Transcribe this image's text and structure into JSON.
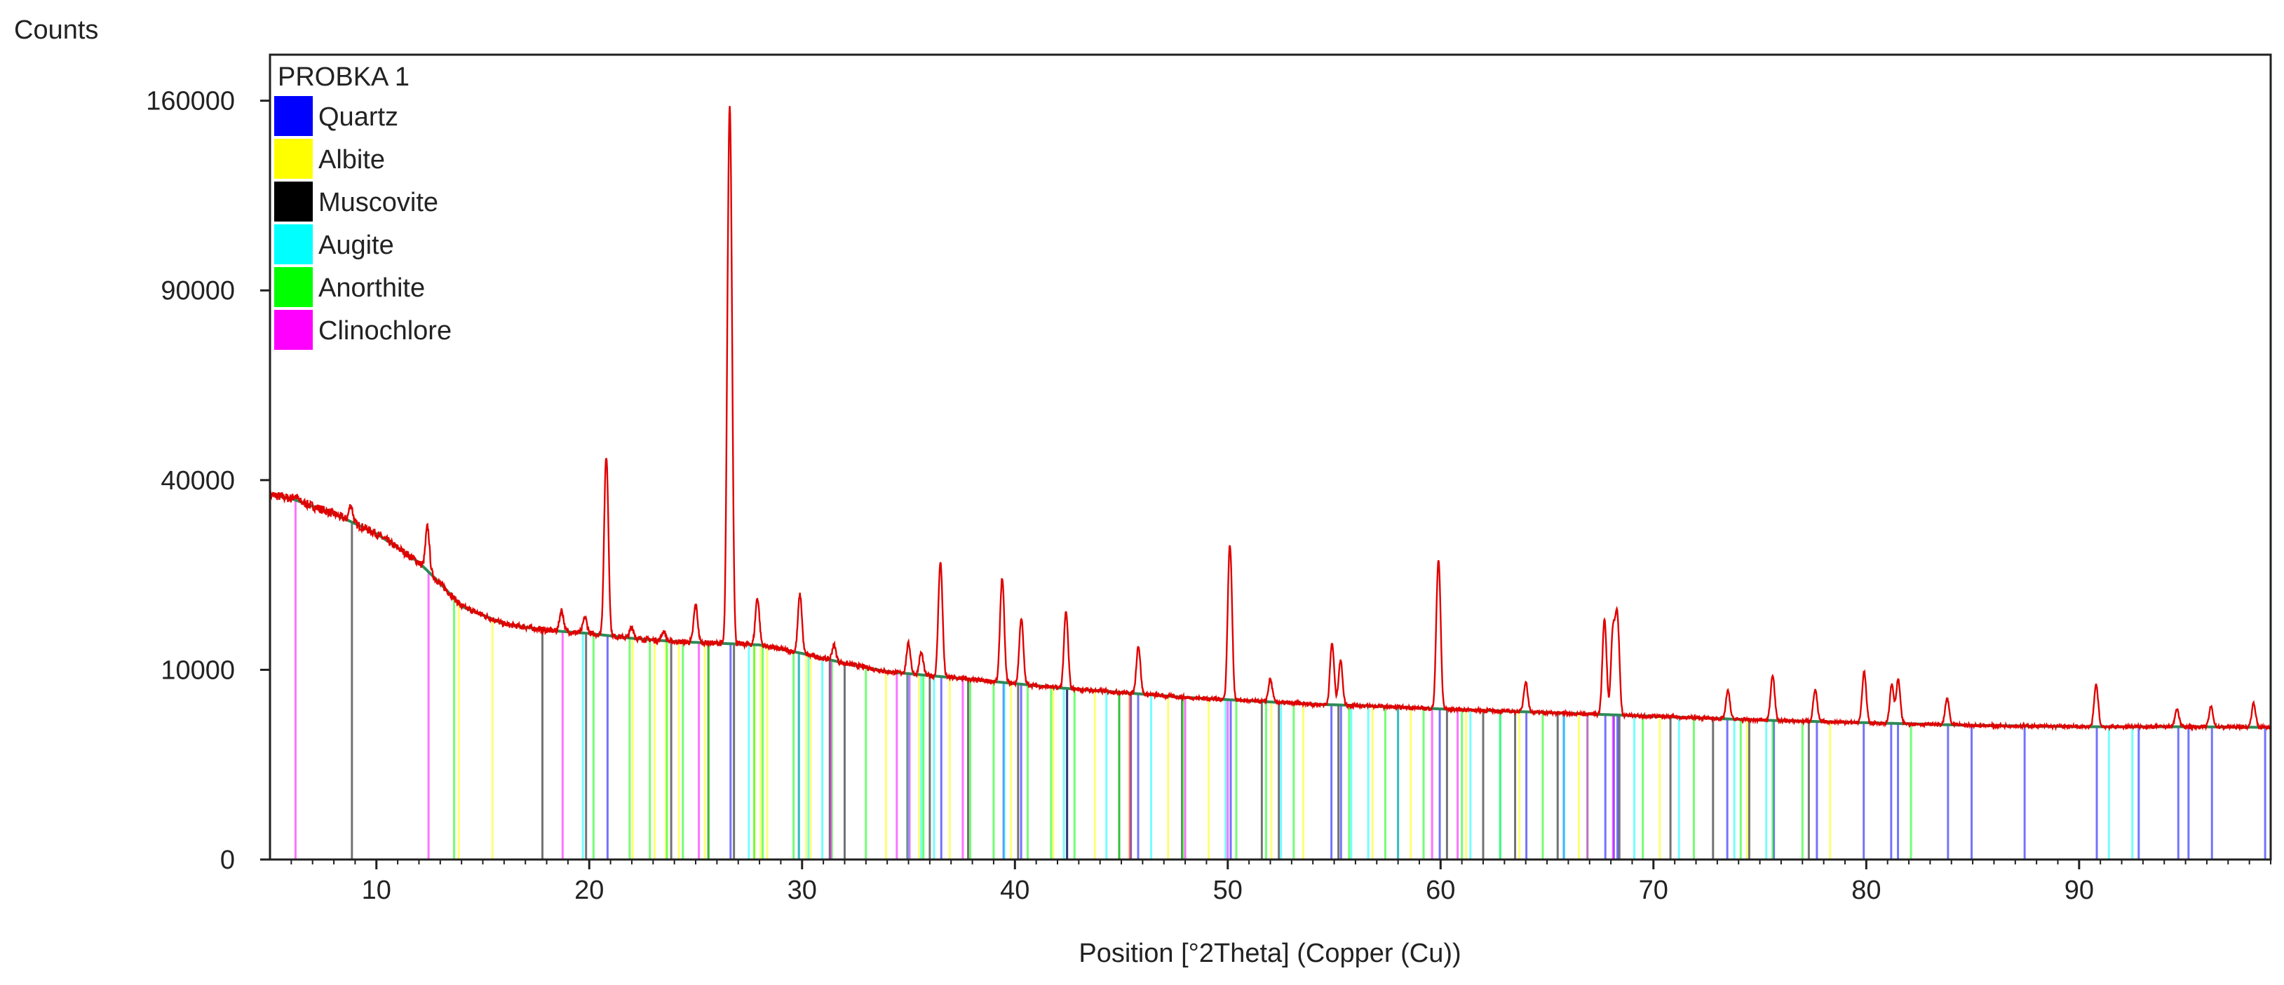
{
  "chart_data": {
    "type": "line",
    "title": "",
    "ylabel": "Counts",
    "xlabel": "Position [°2Theta] (Copper (Cu))",
    "xlim": [
      5,
      99
    ],
    "ylim": [
      0,
      180000
    ],
    "y_scale": "sqrt",
    "grid": false,
    "legend_placement": "top-left",
    "x_ticks": [
      10,
      20,
      30,
      40,
      50,
      60,
      70,
      80,
      90
    ],
    "y_ticks": [
      0,
      10000,
      40000,
      90000,
      160000
    ],
    "x_tick_labels": [
      "10",
      "20",
      "30",
      "40",
      "50",
      "60",
      "70",
      "80",
      "90"
    ],
    "y_tick_labels": [
      "0",
      "10000",
      "40000",
      "90000",
      "160000"
    ],
    "legend": {
      "title": "PROBKA 1",
      "entries": [
        {
          "name": "Quartz",
          "color": "#0000ff"
        },
        {
          "name": "Albite",
          "color": "#ffff00"
        },
        {
          "name": "Muscovite",
          "color": "#000000"
        },
        {
          "name": "Augite",
          "color": "#00ffff"
        },
        {
          "name": "Anorthite",
          "color": "#00ff00"
        },
        {
          "name": "Clinochlore",
          "color": "#ff00ff"
        }
      ]
    },
    "pattern": {
      "name": "PROBKA 1",
      "color": "#e00000",
      "background_color": "#2e8b57",
      "background": [
        [
          5,
          37000
        ],
        [
          6,
          36200
        ],
        [
          8,
          33200
        ],
        [
          10,
          29500
        ],
        [
          12,
          24500
        ],
        [
          14,
          17800
        ],
        [
          16,
          15400
        ],
        [
          18,
          14600
        ],
        [
          20,
          14200
        ],
        [
          22,
          13600
        ],
        [
          24,
          13200
        ],
        [
          26,
          13000
        ],
        [
          28,
          12800
        ],
        [
          30,
          11800
        ],
        [
          32,
          10700
        ],
        [
          34,
          9800
        ],
        [
          36,
          9400
        ],
        [
          38,
          9000
        ],
        [
          40,
          8600
        ],
        [
          42,
          8200
        ],
        [
          44,
          7900
        ],
        [
          46,
          7600
        ],
        [
          48,
          7300
        ],
        [
          50,
          7100
        ],
        [
          52,
          6900
        ],
        [
          54,
          6700
        ],
        [
          56,
          6600
        ],
        [
          58,
          6450
        ],
        [
          60,
          6300
        ],
        [
          65,
          6000
        ],
        [
          70,
          5700
        ],
        [
          75,
          5400
        ],
        [
          80,
          5200
        ],
        [
          85,
          5000
        ],
        [
          90,
          4900
        ],
        [
          95,
          4900
        ],
        [
          99,
          4850
        ]
      ],
      "peaks": [
        {
          "x": 6.2,
          "y": 36800
        },
        {
          "x": 8.8,
          "y": 34900
        },
        {
          "x": 12.4,
          "y": 30800
        },
        {
          "x": 18.7,
          "y": 17300
        },
        {
          "x": 19.8,
          "y": 16300
        },
        {
          "x": 20.8,
          "y": 45000
        },
        {
          "x": 22.0,
          "y": 15000
        },
        {
          "x": 23.5,
          "y": 14500
        },
        {
          "x": 25.0,
          "y": 18000
        },
        {
          "x": 26.6,
          "y": 158000
        },
        {
          "x": 27.9,
          "y": 19000
        },
        {
          "x": 29.9,
          "y": 19500
        },
        {
          "x": 31.5,
          "y": 12800
        },
        {
          "x": 35.0,
          "y": 13000
        },
        {
          "x": 35.6,
          "y": 11900
        },
        {
          "x": 36.5,
          "y": 24500
        },
        {
          "x": 39.4,
          "y": 22000
        },
        {
          "x": 40.3,
          "y": 16200
        },
        {
          "x": 42.4,
          "y": 17000
        },
        {
          "x": 45.8,
          "y": 12700
        },
        {
          "x": 50.1,
          "y": 27500
        },
        {
          "x": 52.0,
          "y": 9000
        },
        {
          "x": 54.9,
          "y": 13000
        },
        {
          "x": 55.3,
          "y": 11000
        },
        {
          "x": 59.9,
          "y": 25000
        },
        {
          "x": 64.0,
          "y": 8800
        },
        {
          "x": 67.7,
          "y": 16000
        },
        {
          "x": 68.1,
          "y": 14500
        },
        {
          "x": 68.3,
          "y": 16500
        },
        {
          "x": 73.5,
          "y": 7900
        },
        {
          "x": 75.6,
          "y": 9500
        },
        {
          "x": 77.6,
          "y": 8000
        },
        {
          "x": 79.9,
          "y": 9800
        },
        {
          "x": 81.2,
          "y": 8500
        },
        {
          "x": 81.5,
          "y": 9000
        },
        {
          "x": 83.8,
          "y": 7200
        },
        {
          "x": 90.8,
          "y": 8500
        },
        {
          "x": 94.6,
          "y": 6300
        },
        {
          "x": 96.2,
          "y": 6500
        },
        {
          "x": 98.2,
          "y": 6800
        }
      ]
    },
    "reference_lines": {
      "Quartz": [
        20.86,
        26.64,
        36.54,
        39.47,
        40.29,
        42.45,
        45.79,
        50.14,
        54.87,
        55.32,
        59.96,
        64.03,
        65.79,
        67.74,
        68.14,
        68.31,
        73.47,
        75.66,
        77.68,
        79.88,
        81.17,
        81.49,
        83.84,
        84.95,
        87.44,
        90.83,
        92.8,
        94.66,
        95.14,
        96.24,
        98.74
      ],
      "Albite": [
        13.87,
        15.45,
        22.04,
        23.07,
        23.6,
        24.21,
        25.43,
        27.76,
        28.05,
        28.36,
        30.19,
        30.4,
        33.94,
        35.5,
        36.94,
        39.82,
        41.8,
        43.75,
        45.35,
        47.2,
        49.1,
        52.05,
        53.55,
        56.8,
        58.6,
        61.2,
        63.7,
        66.5,
        70.3,
        74.4,
        78.3
      ],
      "Muscovite": [
        8.85,
        17.8,
        19.85,
        23.85,
        25.6,
        26.8,
        29.85,
        31.3,
        32.0,
        34.95,
        36.0,
        37.8,
        40.15,
        42.45,
        44.9,
        45.45,
        47.85,
        51.6,
        52.4,
        55.2,
        58.0,
        60.3,
        62.0,
        63.5,
        65.5,
        68.4,
        70.8,
        72.8,
        74.5,
        77.3
      ],
      "Augite": [
        19.7,
        27.5,
        29.85,
        30.3,
        30.95,
        35.0,
        35.6,
        36.2,
        39.5,
        42.3,
        44.3,
        46.4,
        49.9,
        52.5,
        55.8,
        56.6,
        58.0,
        61.4,
        62.8,
        65.8,
        69.1,
        71.2,
        73.8,
        75.3,
        91.4,
        92.5
      ],
      "Anorthite": [
        13.65,
        20.2,
        21.9,
        22.85,
        23.65,
        24.4,
        25.6,
        27.75,
        28.15,
        29.6,
        31.4,
        33.0,
        35.7,
        37.9,
        39.0,
        40.6,
        41.7,
        42.8,
        44.9,
        47.9,
        50.4,
        51.8,
        53.1,
        55.7,
        57.4,
        59.2,
        61.0,
        62.8,
        64.8,
        66.9,
        69.5,
        71.9,
        74.1,
        75.6,
        77.0,
        82.1
      ],
      "Clinochlore": [
        6.2,
        12.45,
        18.75,
        25.15,
        31.35,
        34.45,
        35.05,
        37.55,
        45.4,
        48.0,
        50.0,
        59.6,
        60.8,
        66.9,
        68.1
      ]
    }
  }
}
